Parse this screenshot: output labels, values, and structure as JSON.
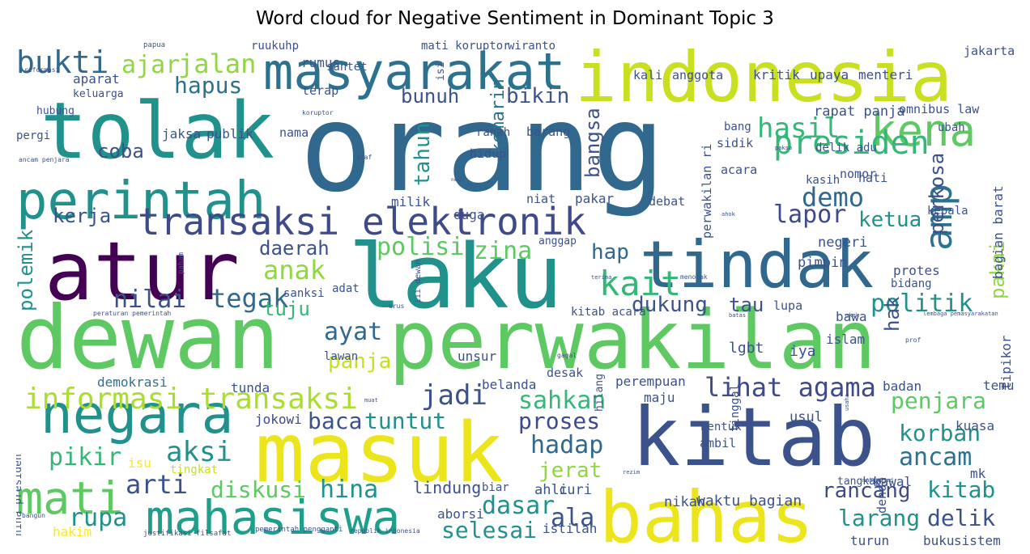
{
  "title": "Word cloud for Negative Sentiment in Dominant Topic 3",
  "palette": [
    "#440154",
    "#3b528b",
    "#21918c",
    "#5ec962",
    "#fde725"
  ],
  "words": [
    {
      "text": "orang",
      "color": "#31688e"
    },
    {
      "text": "dewan",
      "color": "#5ec962"
    },
    {
      "text": "perwakilan",
      "color": "#5ec962"
    },
    {
      "text": "masuk",
      "color": "#ece51b"
    },
    {
      "text": "kitab",
      "color": "#3b528b"
    },
    {
      "text": "laku",
      "color": "#21918c"
    },
    {
      "text": "indonesia",
      "color": "#c8e020"
    },
    {
      "text": "bahas",
      "color": "#ece51b"
    },
    {
      "text": "atur",
      "color": "#440154"
    },
    {
      "text": "tolak",
      "color": "#21918c"
    },
    {
      "text": "tindak",
      "color": "#31688e"
    },
    {
      "text": "negara",
      "color": "#21918c"
    },
    {
      "text": "perintah",
      "color": "#21918c"
    },
    {
      "text": "transaksi elektronik",
      "color": "#3e4a89"
    },
    {
      "text": "masyarakat",
      "color": "#2c728e"
    },
    {
      "text": "mahasiswa",
      "color": "#1f9e89"
    },
    {
      "text": "informasi transaksi",
      "color": "#aadc32"
    },
    {
      "text": "mati",
      "color": "#5ec962"
    },
    {
      "text": "amp",
      "color": "#2c728e"
    },
    {
      "text": "kena",
      "color": "#5ec962"
    },
    {
      "text": "bukti",
      "color": "#31688e"
    },
    {
      "text": "presiden",
      "color": "#35b779"
    },
    {
      "text": "hasil",
      "color": "#35b779"
    },
    {
      "text": "jalan",
      "color": "#90d743"
    },
    {
      "text": "hapus",
      "color": "#2c728e"
    },
    {
      "text": "ajar",
      "color": "#90d743"
    },
    {
      "text": "demo",
      "color": "#31688e"
    },
    {
      "text": "lapor",
      "color": "#3e4a89"
    },
    {
      "text": "ketua",
      "color": "#21918c"
    },
    {
      "text": "kait",
      "color": "#35b779"
    },
    {
      "text": "polisi",
      "color": "#5ec962"
    },
    {
      "text": "zina",
      "color": "#5ec962"
    },
    {
      "text": "anak",
      "color": "#90d743"
    },
    {
      "text": "tegak",
      "color": "#31688e"
    },
    {
      "text": "nilai",
      "color": "#3b528b"
    },
    {
      "text": "hap",
      "color": "#31688e"
    },
    {
      "text": "politik",
      "color": "#21918c"
    },
    {
      "text": "lihat agama",
      "color": "#3e4a89"
    },
    {
      "text": "sahkan",
      "color": "#35b779"
    },
    {
      "text": "penjara",
      "color": "#5ec962"
    },
    {
      "text": "korban",
      "color": "#21918c"
    },
    {
      "text": "ancam",
      "color": "#2c728e"
    },
    {
      "text": "hadap",
      "color": "#31688e"
    },
    {
      "text": "proses",
      "color": "#3e4a89"
    },
    {
      "text": "tuntut",
      "color": "#21918c"
    },
    {
      "text": "jadi",
      "color": "#3b528b"
    },
    {
      "text": "baca",
      "color": "#3b528b"
    },
    {
      "text": "aksi",
      "color": "#21918c"
    },
    {
      "text": "pikir",
      "color": "#35b779"
    },
    {
      "text": "arti",
      "color": "#3b528b"
    },
    {
      "text": "diskusi",
      "color": "#5ec962"
    },
    {
      "text": "hina",
      "color": "#21918c"
    },
    {
      "text": "rupa",
      "color": "#21918c"
    },
    {
      "text": "dasar",
      "color": "#21918c"
    },
    {
      "text": "ala",
      "color": "#3b528b"
    },
    {
      "text": "selesai",
      "color": "#21918c"
    },
    {
      "text": "rancang",
      "color": "#3e4a89"
    },
    {
      "text": "larang",
      "color": "#21918c"
    },
    {
      "text": "delik",
      "color": "#3b528b"
    },
    {
      "text": "jerat",
      "color": "#90d743"
    },
    {
      "text": "ayat",
      "color": "#31688e"
    },
    {
      "text": "panja",
      "color": "#c8e020"
    },
    {
      "text": "dukung",
      "color": "#3b528b"
    },
    {
      "text": "tuju",
      "color": "#35b779"
    },
    {
      "text": "daerah",
      "color": "#3b528b"
    },
    {
      "text": "kerja",
      "color": "#3b528b"
    },
    {
      "text": "coba",
      "color": "#3b528b"
    },
    {
      "text": "bunuh",
      "color": "#3b528b"
    },
    {
      "text": "bikin",
      "color": "#3b528b"
    },
    {
      "text": "tahun",
      "color": "#21918c"
    },
    {
      "text": "kemarin",
      "color": "#2c728e"
    },
    {
      "text": "bangsa",
      "color": "#3b528b"
    },
    {
      "text": "perkosa",
      "color": "#3b528b"
    },
    {
      "text": "pakai",
      "color": "#90d743"
    },
    {
      "text": "hak",
      "color": "#3b528b"
    },
    {
      "text": "tau",
      "color": "#3b528b"
    },
    {
      "text": "polemik",
      "color": "#21918c"
    },
    {
      "text": "kitab",
      "color": "#21918c"
    },
    {
      "text": "lindung",
      "color": "#3b528b"
    },
    {
      "text": "hakim",
      "color": "#fde725"
    },
    {
      "text": "isu",
      "color": "#fde725"
    },
    {
      "text": "tingkat",
      "color": "#c8e020"
    },
    {
      "text": "demokrasi",
      "color": "#2c728e"
    },
    {
      "text": "tunda",
      "color": "#3b528b"
    },
    {
      "text": "lawan",
      "color": "#3b528b"
    },
    {
      "text": "belanda",
      "color": "#3b528b"
    },
    {
      "text": "jokowi",
      "color": "#3e4a89"
    },
    {
      "text": "ahli",
      "color": "#3b528b"
    },
    {
      "text": "curi",
      "color": "#3b528b"
    },
    {
      "text": "aborsi",
      "color": "#3b528b"
    },
    {
      "text": "biar",
      "color": "#3b528b"
    },
    {
      "text": "istilah",
      "color": "#3b528b"
    },
    {
      "text": "nikah",
      "color": "#3b528b"
    },
    {
      "text": "waktu bagian",
      "color": "#3b528b"
    },
    {
      "text": "kawal",
      "color": "#3b528b"
    },
    {
      "text": "buku",
      "color": "#3b528b"
    },
    {
      "text": "turun",
      "color": "#3b528b"
    },
    {
      "text": "sistem",
      "color": "#3b528b"
    },
    {
      "text": "denda",
      "color": "#3b528b"
    },
    {
      "text": "mk",
      "color": "#3b528b"
    },
    {
      "text": "kuasa",
      "color": "#3b528b"
    },
    {
      "text": "badan",
      "color": "#3b528b"
    },
    {
      "text": "temu",
      "color": "#3b528b"
    },
    {
      "text": "tipikor",
      "color": "#3b528b"
    },
    {
      "text": "perempuan",
      "color": "#3b528b"
    },
    {
      "text": "maju",
      "color": "#3b528b"
    },
    {
      "text": "desak",
      "color": "#3b528b"
    },
    {
      "text": "unsur",
      "color": "#3b528b"
    },
    {
      "text": "usul",
      "color": "#3b528b"
    },
    {
      "text": "lgbt",
      "color": "#3b528b"
    },
    {
      "text": "iya",
      "color": "#3b528b"
    },
    {
      "text": "islam",
      "color": "#3b528b"
    },
    {
      "text": "bawa",
      "color": "#3b528b"
    },
    {
      "text": "lupa",
      "color": "#3b528b"
    },
    {
      "text": "protes",
      "color": "#3b528b"
    },
    {
      "text": "bidang",
      "color": "#3b528b"
    },
    {
      "text": "negeri",
      "color": "#3b528b"
    },
    {
      "text": "pimpin",
      "color": "#3b528b"
    },
    {
      "text": "bagian barat",
      "color": "#3b528b"
    },
    {
      "text": "kepala",
      "color": "#3b528b"
    },
    {
      "text": "hati",
      "color": "#3b528b"
    },
    {
      "text": "nomor",
      "color": "#3b528b"
    },
    {
      "text": "kasih",
      "color": "#3b528b"
    },
    {
      "text": "acara",
      "color": "#3b528b"
    },
    {
      "text": "sidik",
      "color": "#3b528b"
    },
    {
      "text": "bang",
      "color": "#3b528b"
    },
    {
      "text": "debat",
      "color": "#3b528b"
    },
    {
      "text": "pakar",
      "color": "#3b528b"
    },
    {
      "text": "niat",
      "color": "#3b528b"
    },
    {
      "text": "duga",
      "color": "#3b528b"
    },
    {
      "text": "milik",
      "color": "#3b528b"
    },
    {
      "text": "hidup",
      "color": "#3b528b"
    },
    {
      "text": "barang",
      "color": "#3b528b"
    },
    {
      "text": "ranah",
      "color": "#3b528b"
    },
    {
      "text": "rapat panja",
      "color": "#3b528b"
    },
    {
      "text": "omnibus law",
      "color": "#3b528b"
    },
    {
      "text": "ubah",
      "color": "#3b528b"
    },
    {
      "text": "delik adu",
      "color": "#3b528b"
    },
    {
      "text": "perwakilan ri",
      "color": "#3b528b"
    },
    {
      "text": "kali",
      "color": "#3b528b"
    },
    {
      "text": "anggota",
      "color": "#3b528b"
    },
    {
      "text": "kritik",
      "color": "#3b528b"
    },
    {
      "text": "upaya",
      "color": "#3b528b"
    },
    {
      "text": "menteri",
      "color": "#3b528b"
    },
    {
      "text": "jakarta",
      "color": "#3b528b"
    },
    {
      "text": "wiranto",
      "color": "#3b528b"
    },
    {
      "text": "mati koruptor",
      "color": "#3b528b"
    },
    {
      "text": "ruukuhp",
      "color": "#3b528b"
    },
    {
      "text": "rumus",
      "color": "#3b528b"
    },
    {
      "text": "santet",
      "color": "#3b528b"
    },
    {
      "text": "terap",
      "color": "#3b528b"
    },
    {
      "text": "nama",
      "color": "#3b528b"
    },
    {
      "text": "aparat",
      "color": "#3b528b"
    },
    {
      "text": "keluarga",
      "color": "#3b528b"
    },
    {
      "text": "hubung",
      "color": "#3b528b"
    },
    {
      "text": "pergi",
      "color": "#3b528b"
    },
    {
      "text": "jaksa",
      "color": "#3b528b"
    },
    {
      "text": "publik",
      "color": "#3b528b"
    },
    {
      "text": "sanksi",
      "color": "#3b528b"
    },
    {
      "text": "adat",
      "color": "#3b528b"
    },
    {
      "text": "kitab acara",
      "color": "#3b528b"
    },
    {
      "text": "anggap",
      "color": "#3b528b"
    },
    {
      "text": "hilang",
      "color": "#3b528b"
    },
    {
      "text": "tinggal",
      "color": "#3b528b"
    },
    {
      "text": "bentuk",
      "color": "#3b528b"
    },
    {
      "text": "ambil",
      "color": "#3b528b"
    },
    {
      "text": "tangkap",
      "color": "#3b528b"
    },
    {
      "text": "hina presiden",
      "color": "#3b528b"
    },
    {
      "text": "isi",
      "color": "#3b528b"
    },
    {
      "text": "papua",
      "color": "#3b528b"
    },
    {
      "text": "reformasi",
      "color": "#3b528b"
    },
    {
      "text": "koruptor",
      "color": "#3b528b"
    },
    {
      "text": "ancam penjara",
      "color": "#3b528b"
    },
    {
      "text": "draf",
      "color": "#3b528b"
    },
    {
      "text": "paksa",
      "color": "#3b528b"
    },
    {
      "text": "news",
      "color": "#3b528b"
    },
    {
      "text": "ahok",
      "color": "#3b528b"
    },
    {
      "text": "menolak",
      "color": "#3b528b"
    },
    {
      "text": "paham",
      "color": "#3b528b"
    },
    {
      "text": "terima",
      "color": "#3b528b"
    },
    {
      "text": "urus",
      "color": "#3b528b"
    },
    {
      "text": "iii dewan",
      "color": "#3b528b"
    },
    {
      "text": "peraturan pemerintah",
      "color": "#3b528b"
    },
    {
      "text": "batas",
      "color": "#3b528b"
    },
    {
      "text": "mkmk",
      "color": "#3b528b"
    },
    {
      "text": "lembaga pemasyarakatan",
      "color": "#3b528b"
    },
    {
      "text": "prof",
      "color": "#3b528b"
    },
    {
      "text": "gagal",
      "color": "#3b528b"
    },
    {
      "text": "usaha",
      "color": "#3b528b"
    },
    {
      "text": "mahfud md",
      "color": "#3b528b"
    },
    {
      "text": "rezim",
      "color": "#3b528b"
    },
    {
      "text": "bangun",
      "color": "#3b528b"
    },
    {
      "text": "justifikasi filsafat",
      "color": "#3b528b"
    },
    {
      "text": "pemerintah pengganti",
      "color": "#3b528b"
    },
    {
      "text": "republik indonesia",
      "color": "#3b528b"
    },
    {
      "text": "muat",
      "color": "#3b528b"
    }
  ]
}
